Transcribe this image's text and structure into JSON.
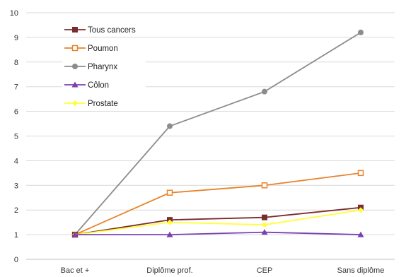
{
  "chart_data": {
    "type": "line",
    "categories": [
      "Bac et +",
      "Diplôme prof.",
      "CEP",
      "Sans diplôme"
    ],
    "ylim": [
      0,
      10
    ],
    "yticks": [
      0,
      1,
      2,
      3,
      4,
      5,
      6,
      7,
      8,
      9,
      10
    ],
    "grid": "horizontal",
    "legend_position": "top-left",
    "series": [
      {
        "name": "Tous cancers",
        "values": [
          1.0,
          1.6,
          1.7,
          2.1
        ],
        "color": "#7b2c2c",
        "marker": "square-filled"
      },
      {
        "name": "Poumon",
        "values": [
          1.0,
          2.7,
          3.0,
          3.5
        ],
        "color": "#e8832a",
        "marker": "square-open"
      },
      {
        "name": "Pharynx",
        "values": [
          1.0,
          5.4,
          6.8,
          9.2
        ],
        "color": "#8c8c8c",
        "marker": "circle-filled"
      },
      {
        "name": "Côlon",
        "values": [
          1.0,
          1.0,
          1.1,
          1.0
        ],
        "color": "#7a3fb3",
        "marker": "triangle-filled"
      },
      {
        "name": "Prostate",
        "values": [
          1.0,
          1.5,
          1.4,
          2.0
        ],
        "color": "#ffff33",
        "marker": "diamond-filled"
      }
    ]
  }
}
